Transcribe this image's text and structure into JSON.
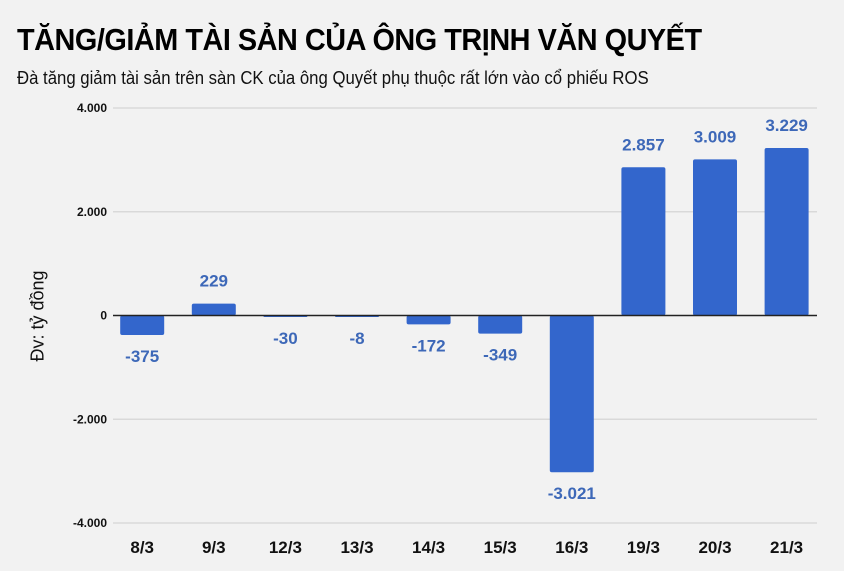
{
  "header": {
    "title": "TĂNG/GIẢM TÀI SẢN CỦA ÔNG TRỊNH VĂN QUYẾT",
    "subtitle": "Đà tăng giảm tài sản trên sàn CK của ông Quyết phụ thuộc rất lớn vào cổ phiếu ROS"
  },
  "colors": {
    "background": "#f2f2f2",
    "bar": "#3366cc",
    "value_label": "#3d68b8",
    "gridline": "#d9d9d9",
    "zero_line": "#222222"
  },
  "chart_data": {
    "type": "bar",
    "title": "TĂNG/GIẢM TÀI SẢN CỦA ÔNG TRỊNH VĂN QUYẾT",
    "subtitle": "Đà tăng giảm tài sản trên sàn CK của ông Quyết phụ thuộc rất lớn vào cổ phiếu ROS",
    "xlabel": "",
    "ylabel": "Đv: tỷ đồng",
    "categories": [
      "8/3",
      "9/3",
      "12/3",
      "13/3",
      "14/3",
      "15/3",
      "16/3",
      "19/3",
      "20/3",
      "21/3"
    ],
    "values": [
      -375,
      229,
      -30,
      -8,
      -172,
      -349,
      -3021,
      2857,
      3009,
      3229
    ],
    "value_labels": [
      "-375",
      "229",
      "-30",
      "-8",
      "-172",
      "-349",
      "-3.021",
      "2.857",
      "3.009",
      "3.229"
    ],
    "ylim": [
      -4000,
      4000
    ],
    "yticks": [
      4000,
      2000,
      0,
      -2000,
      -4000
    ],
    "ytick_labels": [
      "4.000",
      "2.000",
      "0",
      "-2.000",
      "-4.000"
    ],
    "grid": true,
    "legend": null
  }
}
